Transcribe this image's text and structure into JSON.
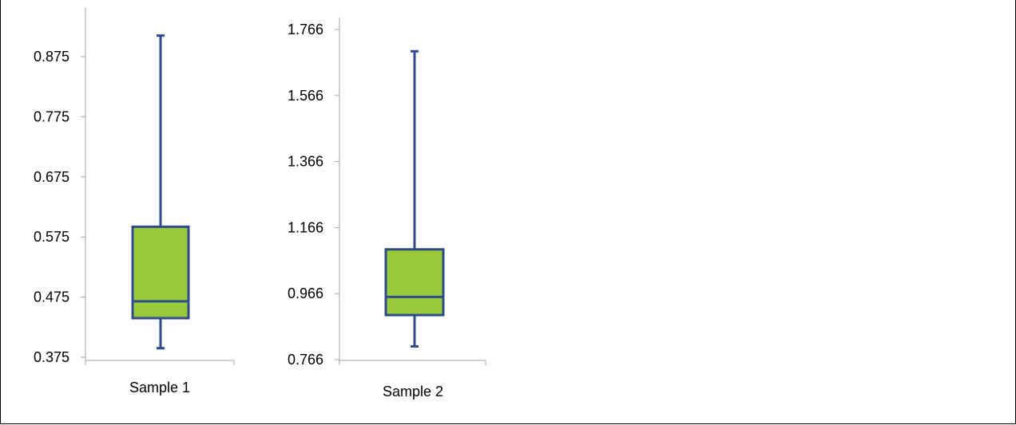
{
  "chart_data": [
    {
      "type": "boxplot",
      "category": "Sample 1",
      "ylim": [
        0.375,
        0.925
      ],
      "yticks": [
        "0.375",
        "0.475",
        "0.575",
        "0.675",
        "0.775",
        "0.875"
      ],
      "box": {
        "min": 0.39,
        "q1": 0.44,
        "median": 0.468,
        "q3": 0.592,
        "max": 0.91
      },
      "box_fill": "#9ACA3C",
      "line_color": "#2F4B8A"
    },
    {
      "type": "boxplot",
      "category": "Sample 2",
      "ylim": [
        0.766,
        1.766
      ],
      "yticks": [
        "0.766",
        "0.966",
        "1.166",
        "1.366",
        "1.566",
        "1.766"
      ],
      "box": {
        "min": 0.806,
        "q1": 0.901,
        "median": 0.956,
        "q3": 1.1,
        "max": 1.7
      },
      "box_fill": "#9ACA3C",
      "line_color": "#2F4B8A"
    }
  ],
  "colors": {
    "axis": "#A6A6A6",
    "border": "#000000"
  }
}
